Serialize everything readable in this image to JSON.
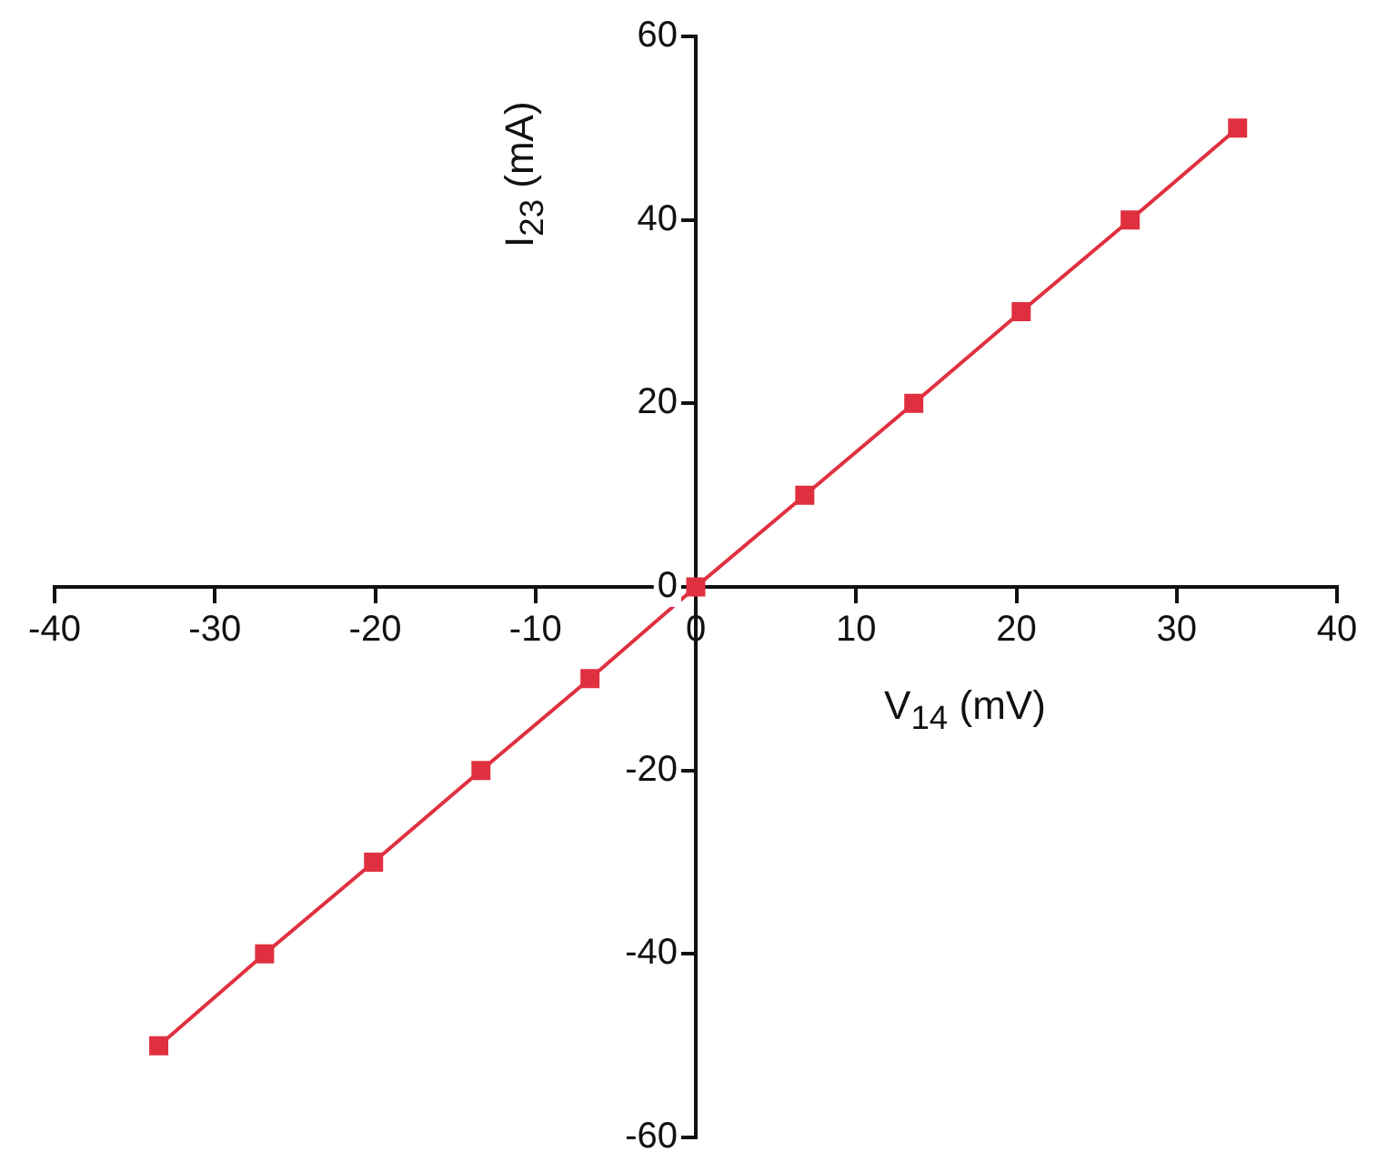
{
  "chart_data": {
    "type": "line",
    "xlabel": "V$_{14}$ (mV)",
    "ylabel": "I$_{23}$ (mA)",
    "x": [
      -33.5,
      -26.9,
      -20.1,
      -13.4,
      -6.6,
      0,
      6.8,
      13.6,
      20.3,
      27.1,
      33.8
    ],
    "series": [
      {
        "color": "#e0303f",
        "values": [
          -50,
          -40,
          -30,
          -20,
          -10,
          0,
          10,
          20,
          30,
          40,
          50
        ]
      }
    ],
    "xlim": [
      -40,
      40
    ],
    "xticks": [
      -40,
      -30,
      -20,
      -10,
      0,
      10,
      20,
      30,
      40
    ],
    "ylim": [
      -60,
      60
    ],
    "yticks": [
      -60,
      -40,
      -20,
      0,
      20,
      40,
      60
    ],
    "grid": false,
    "legend": false,
    "marker": "square",
    "line_style": "solid"
  }
}
